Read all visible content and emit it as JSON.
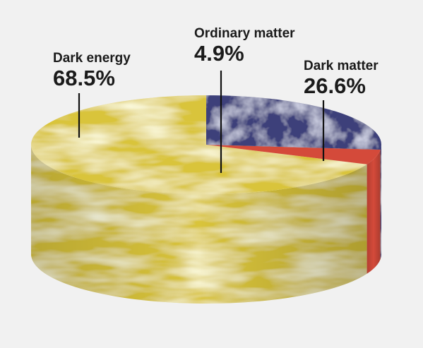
{
  "chart_data": {
    "type": "pie",
    "title": "",
    "slices": [
      {
        "label": "Dark energy",
        "value": 68.5,
        "value_text": "68.5%",
        "color": "#d9c43a"
      },
      {
        "label": "Ordinary matter",
        "value": 4.9,
        "value_text": "4.9%",
        "color": "#d44a3a"
      },
      {
        "label": "Dark matter",
        "value": 26.6,
        "value_text": "26.6%",
        "color": "#3c3f7a"
      }
    ],
    "style": "3d-cylinder",
    "legend": "none"
  }
}
